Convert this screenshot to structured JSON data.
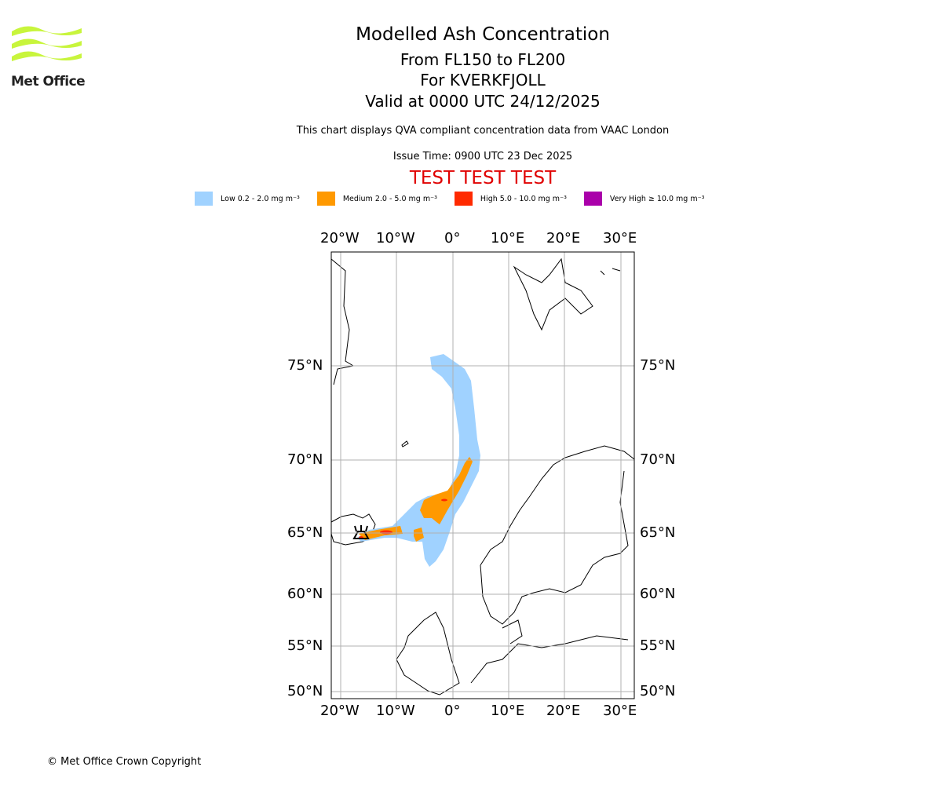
{
  "logo": {
    "text": "Met Office",
    "color": "#c8f53c"
  },
  "header": {
    "title": "Modelled Ash Concentration",
    "levels": "From FL150 to FL200",
    "volcano": "For KVERKFJOLL",
    "valid": "Valid at 0000 UTC 24/12/2025",
    "note": "This chart displays QVA compliant concentration data from VAAC London",
    "issue": "Issue Time: 0900 UTC 23 Dec 2025",
    "test": "TEST TEST TEST"
  },
  "legend": [
    {
      "label": "Low 0.2 - 2.0 mg m⁻³",
      "color": "#a0d2ff"
    },
    {
      "label": "Medium 2.0 - 5.0 mg m⁻³",
      "color": "#ff9900"
    },
    {
      "label": "High 5.0 - 10.0 mg m⁻³",
      "color": "#ff2a00"
    },
    {
      "label": "Very High ≥ 10.0 mg m⁻³",
      "color": "#aa00aa"
    }
  ],
  "axes": {
    "lon": [
      "20°W",
      "10°W",
      "0°",
      "10°E",
      "20°E",
      "30°E"
    ],
    "lat": [
      "75°N",
      "70°N",
      "65°N",
      "60°N",
      "55°N",
      "50°N"
    ]
  },
  "footer": "© Met Office Crown Copyright"
}
